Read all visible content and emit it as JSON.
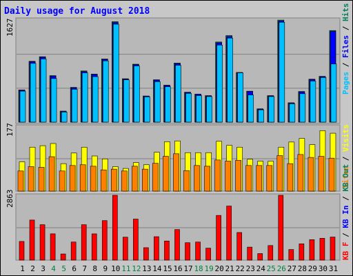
{
  "title": "Daily usage for August 2018",
  "colors": {
    "hits": "#00805c",
    "files": "#0000ff",
    "pages": "#00c0ff",
    "visits": "#ffff00",
    "sites": "#ff8000",
    "kbf": "#ff0000",
    "weekend": "#008040",
    "title": "#0000ff",
    "text": "#000000"
  },
  "panels": {
    "top": {
      "max_label": "1627",
      "legend": [
        "Pages",
        "Files",
        "Hits"
      ]
    },
    "mid": {
      "max_label": "177",
      "legend": [
        "Sites",
        "Visits"
      ]
    },
    "bot": {
      "max_label": "2863",
      "legend": [
        "KB F",
        "KB In",
        "KB Out"
      ]
    }
  },
  "chart_data": {
    "type": "bar",
    "title": "Daily usage for August 2018",
    "categories": [
      "1",
      "2",
      "3",
      "4",
      "5",
      "6",
      "7",
      "8",
      "9",
      "10",
      "11",
      "12",
      "13",
      "14",
      "15",
      "16",
      "17",
      "18",
      "19",
      "20",
      "21",
      "22",
      "23",
      "24",
      "25",
      "26",
      "27",
      "28",
      "29",
      "30",
      "31"
    ],
    "weekend_days": [
      "4",
      "5",
      "11",
      "12",
      "18",
      "19",
      "25",
      "26"
    ],
    "hits": [
      510,
      963,
      1035,
      736,
      175,
      550,
      810,
      760,
      1000,
      1590,
      687,
      917,
      414,
      671,
      585,
      935,
      474,
      443,
      420,
      1268,
      1370,
      787,
      490,
      211,
      420,
      1615,
      307,
      485,
      680,
      725,
      1450
    ],
    "files": [
      505,
      958,
      1030,
      730,
      170,
      545,
      800,
      755,
      990,
      1575,
      680,
      910,
      410,
      665,
      580,
      925,
      470,
      440,
      415,
      1255,
      1355,
      780,
      485,
      205,
      415,
      1600,
      300,
      480,
      675,
      720,
      1435
    ],
    "pages": [
      490,
      930,
      1000,
      690,
      160,
      520,
      780,
      720,
      970,
      1550,
      670,
      890,
      400,
      640,
      560,
      900,
      455,
      420,
      405,
      1220,
      1330,
      780,
      430,
      195,
      405,
      1580,
      290,
      450,
      650,
      705,
      920
    ],
    "visits": [
      80,
      120,
      124,
      130,
      75,
      104,
      120,
      96,
      88,
      67,
      62,
      78,
      72,
      106,
      135,
      137,
      105,
      105,
      105,
      136,
      125,
      120,
      87,
      82,
      82,
      120,
      134,
      144,
      127,
      165,
      158
    ],
    "sites": [
      55,
      67,
      65,
      94,
      55,
      70,
      72,
      68,
      58,
      60,
      55,
      68,
      60,
      76,
      95,
      102,
      56,
      70,
      68,
      85,
      82,
      84,
      70,
      70,
      70,
      97,
      75,
      100,
      92,
      95,
      90
    ],
    "kbf": [
      825,
      1770,
      1565,
      1162,
      273,
      800,
      1565,
      1160,
      1745,
      2863,
      1015,
      1812,
      550,
      1035,
      845,
      1350,
      770,
      800,
      530,
      1975,
      2388,
      1220,
      575,
      290,
      645,
      2863,
      470,
      720,
      905,
      965,
      1020
    ],
    "scales": {
      "top_max": 1627,
      "mid_max": 177,
      "bot_max": 2863
    }
  }
}
